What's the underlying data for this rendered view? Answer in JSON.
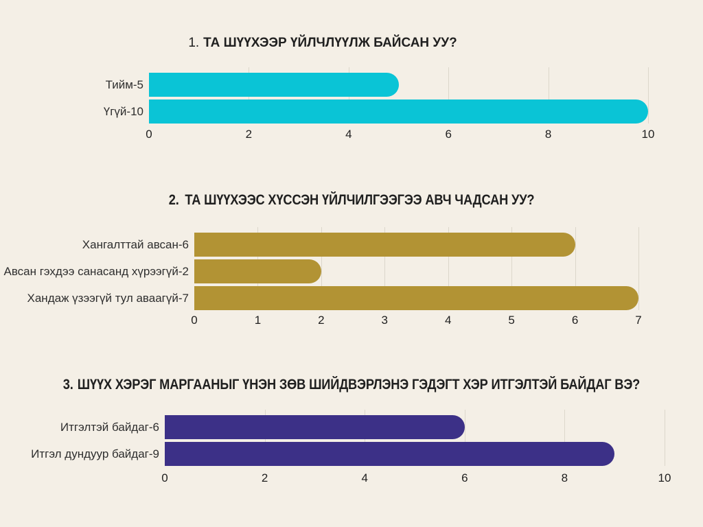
{
  "style": {
    "background": "#f4efe6",
    "grid_color": "#dcd7cb",
    "title_color": "#202020",
    "label_color": "#2e2e2e",
    "tick_color": "#1f1f1f"
  },
  "chart_data": [
    {
      "type": "bar",
      "orientation": "horizontal",
      "number": "1.",
      "title": "ТА ШҮҮХЭЭР ҮЙЛЧЛҮҮЛЖ БАЙСАН УУ?",
      "categories": [
        "Тийм-5",
        "Үгүй-10"
      ],
      "values": [
        5,
        10
      ],
      "xlim": [
        0,
        10
      ],
      "ticks": [
        0,
        2,
        4,
        6,
        8,
        10
      ],
      "color": "#0ac4d6",
      "grid": true,
      "legend": false
    },
    {
      "type": "bar",
      "orientation": "horizontal",
      "number": "2.",
      "title": "ТА ШҮҮХЭЭС ХҮССЭН ҮЙЛЧИЛГЭЭГЭЭ АВЧ ЧАДСАН УУ?",
      "categories": [
        "Хангалттай авсан-6",
        "Авсан гэхдээ санасанд хүрээгүй-2",
        "Хандаж үзээгүй тул аваагүй-7"
      ],
      "values": [
        6,
        2,
        7
      ],
      "xlim": [
        0,
        7
      ],
      "ticks": [
        0,
        1,
        2,
        3,
        4,
        5,
        6,
        7
      ],
      "color": "#b29334",
      "grid": true,
      "legend": false
    },
    {
      "type": "bar",
      "orientation": "horizontal",
      "number": "3.",
      "title": "ШҮҮХ ХЭРЭГ МАРГААНЫГ ҮНЭН ЗӨВ ШИЙДВЭРЛЭНЭ ГЭДЭГТ ХЭР ИТГЭЛТЭЙ БАЙДАГ ВЭ?",
      "categories": [
        "Итгэлтэй байдаг-6",
        "Итгэл дундуур байдаг-9"
      ],
      "values": [
        6,
        9
      ],
      "xlim": [
        0,
        10
      ],
      "ticks": [
        0,
        2,
        4,
        6,
        8,
        10
      ],
      "color": "#3c3087",
      "grid": true,
      "legend": false
    }
  ]
}
